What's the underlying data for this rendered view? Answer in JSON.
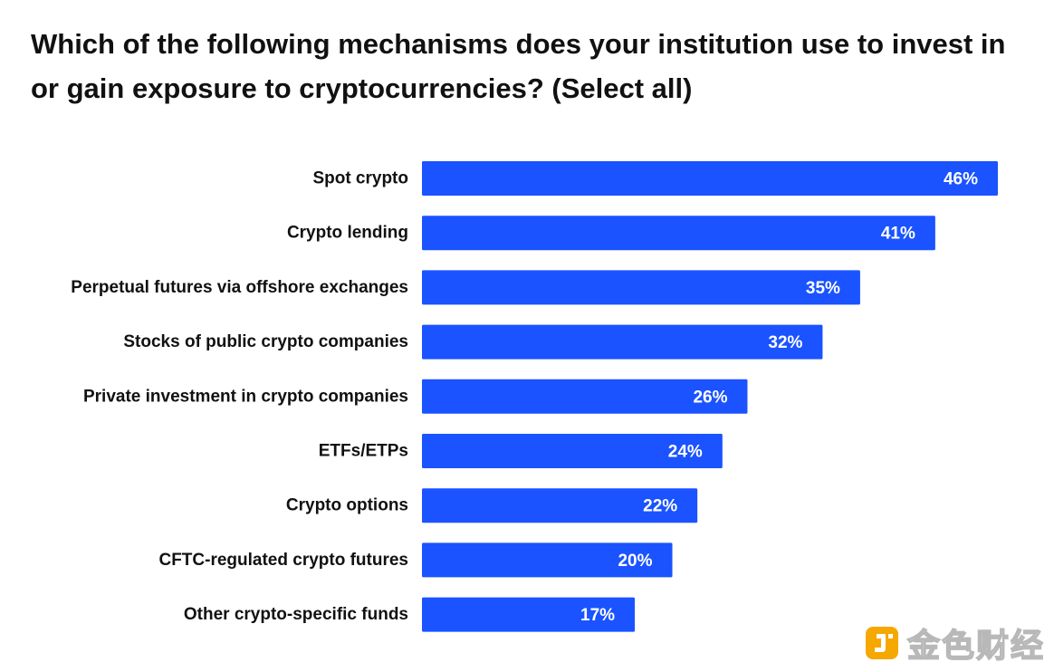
{
  "title": "Which of the following mechanisms does your institution use to invest in or gain exposure to cryptocurrencies? (Select all)",
  "chart_data": {
    "type": "bar",
    "orientation": "horizontal",
    "title": "Which of the following mechanisms does your institution use to invest in or gain exposure to cryptocurrencies? (Select all)",
    "categories": [
      "Spot crypto",
      "Crypto lending",
      "Perpetual futures via offshore exchanges",
      "Stocks of public crypto companies",
      "Private investment in crypto companies",
      "ETFs/ETPs",
      "Crypto options",
      "CFTC-regulated crypto futures",
      "Other crypto-specific funds"
    ],
    "values": [
      46,
      41,
      35,
      32,
      26,
      24,
      22,
      20,
      17
    ],
    "value_labels": [
      "46%",
      "41%",
      "35%",
      "32%",
      "26%",
      "24%",
      "22%",
      "20%",
      "17%"
    ],
    "xlabel": "",
    "ylabel": "",
    "grid": false,
    "bar_color": "#1a53ff"
  },
  "watermark": {
    "icon": "jinse-logo-icon",
    "text": "金色财经",
    "color": "#f5a800"
  }
}
